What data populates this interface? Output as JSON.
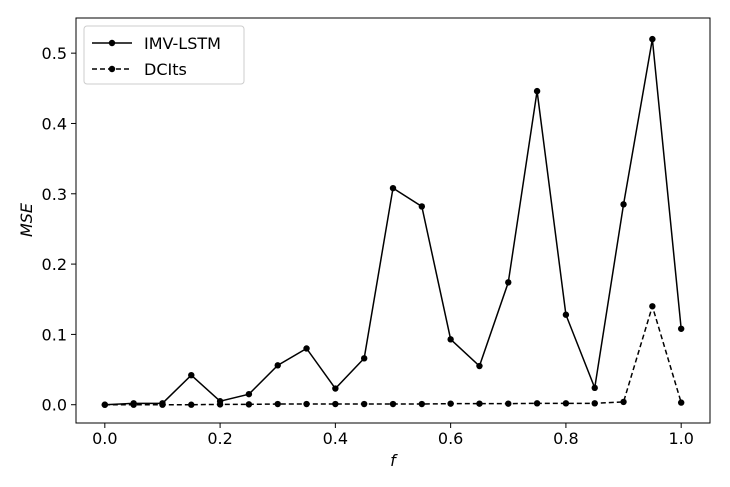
{
  "chart_data": {
    "type": "line",
    "x_label": "f",
    "y_label": "MSE",
    "x": [
      0.0,
      0.05,
      0.1,
      0.15,
      0.2,
      0.25,
      0.3,
      0.35,
      0.4,
      0.45,
      0.5,
      0.55,
      0.6,
      0.65,
      0.7,
      0.75,
      0.8,
      0.85,
      0.9,
      0.95,
      1.0
    ],
    "series": [
      {
        "name": "IMV-LSTM",
        "color": "#000000",
        "linestyle": "solid",
        "values": [
          0.0,
          0.002,
          0.002,
          0.042,
          0.005,
          0.015,
          0.056,
          0.08,
          0.023,
          0.066,
          0.308,
          0.282,
          0.093,
          0.055,
          0.174,
          0.446,
          0.128,
          0.024,
          0.285,
          0.52,
          0.108
        ]
      },
      {
        "name": "DCIts",
        "color": "#000000",
        "linestyle": "dashed",
        "values": [
          0.0,
          0.0,
          0.0,
          0.0,
          0.0005,
          0.0005,
          0.001,
          0.001,
          0.001,
          0.001,
          0.001,
          0.001,
          0.0015,
          0.0015,
          0.0015,
          0.002,
          0.002,
          0.002,
          0.004,
          0.14,
          0.003
        ]
      }
    ],
    "xlim": [
      -0.05,
      1.05
    ],
    "ylim": [
      -0.026,
      0.55
    ],
    "xticks": [
      {
        "value": 0,
        "label": "0.0"
      },
      0.2,
      0.4,
      0.6,
      0.8,
      {
        "value": 1,
        "label": "1.0"
      }
    ],
    "yticks": [
      {
        "value": 0,
        "label": "0.0"
      },
      0.1,
      0.2,
      0.3,
      0.4,
      0.5
    ],
    "legend": "upper left"
  }
}
